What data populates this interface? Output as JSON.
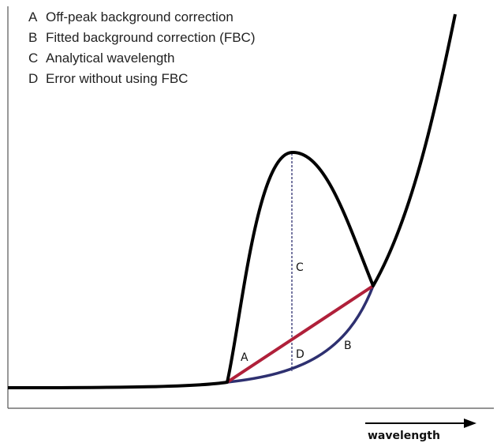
{
  "legend": {
    "items": [
      {
        "letter": "A",
        "text": "Off-peak background correction"
      },
      {
        "letter": "B",
        "text": "Fitted background correction (FBC)"
      },
      {
        "letter": "C",
        "text": "Analytical wavelength"
      },
      {
        "letter": "D",
        "text": "Error without using FBC"
      }
    ]
  },
  "labels": {
    "a": "A",
    "b": "B",
    "c": "C",
    "d": "D"
  },
  "axis": {
    "x_label": "wavelength"
  }
}
